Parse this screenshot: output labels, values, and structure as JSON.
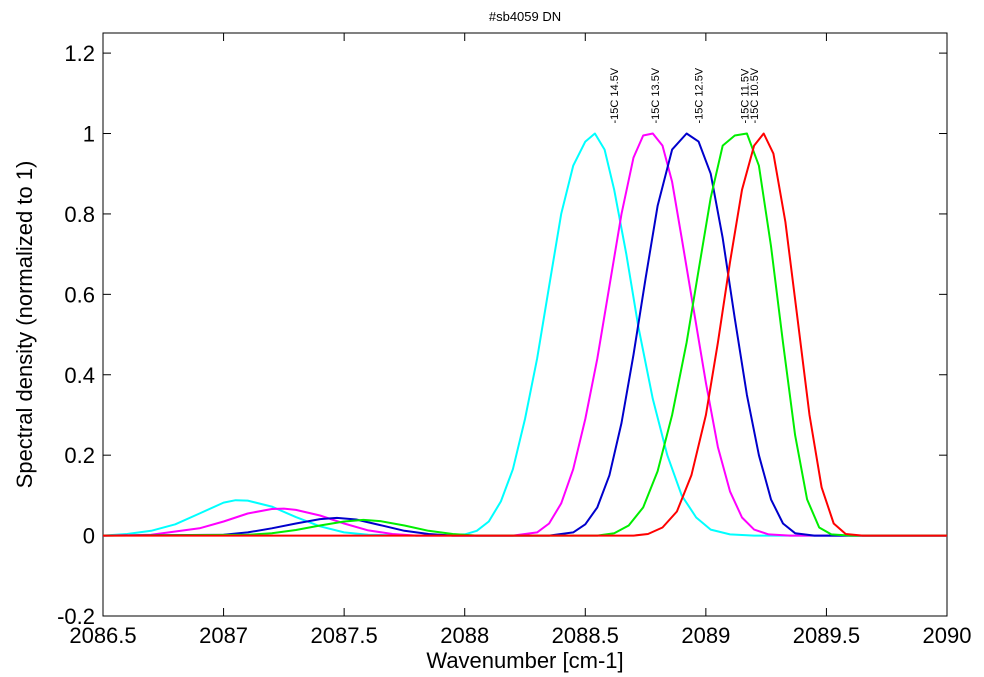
{
  "chart_data": {
    "type": "line",
    "title": "#sb4059 DN",
    "xlabel": "Wavenumber [cm-1]",
    "ylabel": "Spectral density (normalized to 1)",
    "xlim": [
      2086.5,
      2090
    ],
    "ylim": [
      -0.2,
      1.25
    ],
    "xticks": [
      2086.5,
      2087,
      2087.5,
      2088,
      2088.5,
      2089,
      2089.5,
      2090
    ],
    "xtick_labels": [
      "2086.5",
      "2087",
      "2087.5",
      "2088",
      "2088.5",
      "2089",
      "2089.5",
      "2090"
    ],
    "yticks": [
      -0.2,
      0,
      0.2,
      0.4,
      0.6,
      0.8,
      1,
      1.2
    ],
    "ytick_labels": [
      "-0.2",
      "0",
      "0.2",
      "0.4",
      "0.6",
      "0.8",
      "1",
      "1.2"
    ],
    "grid": false,
    "series": [
      {
        "color": "#00ffff",
        "points": [
          [
            2086.5,
            0.0
          ],
          [
            2086.6,
            0.004
          ],
          [
            2086.7,
            0.012
          ],
          [
            2086.8,
            0.028
          ],
          [
            2086.9,
            0.055
          ],
          [
            2087.0,
            0.082
          ],
          [
            2087.05,
            0.088
          ],
          [
            2087.1,
            0.087
          ],
          [
            2087.2,
            0.072
          ],
          [
            2087.3,
            0.046
          ],
          [
            2087.4,
            0.023
          ],
          [
            2087.5,
            0.008
          ],
          [
            2087.6,
            0.002
          ],
          [
            2087.8,
            0.0
          ],
          [
            2088.0,
            0.003
          ],
          [
            2088.05,
            0.012
          ],
          [
            2088.1,
            0.035
          ],
          [
            2088.15,
            0.085
          ],
          [
            2088.2,
            0.165
          ],
          [
            2088.25,
            0.29
          ],
          [
            2088.3,
            0.44
          ],
          [
            2088.35,
            0.62
          ],
          [
            2088.4,
            0.8
          ],
          [
            2088.45,
            0.92
          ],
          [
            2088.5,
            0.98
          ],
          [
            2088.54,
            1.0
          ],
          [
            2088.58,
            0.96
          ],
          [
            2088.62,
            0.86
          ],
          [
            2088.67,
            0.7
          ],
          [
            2088.72,
            0.52
          ],
          [
            2088.78,
            0.34
          ],
          [
            2088.84,
            0.2
          ],
          [
            2088.9,
            0.1
          ],
          [
            2088.96,
            0.045
          ],
          [
            2089.02,
            0.015
          ],
          [
            2089.1,
            0.003
          ],
          [
            2089.2,
            0.0
          ],
          [
            2090,
            0.0
          ]
        ]
      },
      {
        "color": "#ff00ff",
        "points": [
          [
            2086.5,
            0.0
          ],
          [
            2086.7,
            0.002
          ],
          [
            2086.9,
            0.018
          ],
          [
            2087.0,
            0.035
          ],
          [
            2087.1,
            0.055
          ],
          [
            2087.2,
            0.066
          ],
          [
            2087.25,
            0.067
          ],
          [
            2087.3,
            0.064
          ],
          [
            2087.4,
            0.05
          ],
          [
            2087.5,
            0.03
          ],
          [
            2087.6,
            0.013
          ],
          [
            2087.7,
            0.004
          ],
          [
            2087.8,
            0.0
          ],
          [
            2088.2,
            0.0
          ],
          [
            2088.3,
            0.008
          ],
          [
            2088.35,
            0.03
          ],
          [
            2088.4,
            0.08
          ],
          [
            2088.45,
            0.165
          ],
          [
            2088.5,
            0.29
          ],
          [
            2088.55,
            0.44
          ],
          [
            2088.6,
            0.62
          ],
          [
            2088.65,
            0.8
          ],
          [
            2088.7,
            0.94
          ],
          [
            2088.74,
            0.995
          ],
          [
            2088.78,
            1.0
          ],
          [
            2088.82,
            0.97
          ],
          [
            2088.86,
            0.88
          ],
          [
            2088.9,
            0.74
          ],
          [
            2088.95,
            0.56
          ],
          [
            2089.0,
            0.38
          ],
          [
            2089.05,
            0.22
          ],
          [
            2089.1,
            0.11
          ],
          [
            2089.15,
            0.045
          ],
          [
            2089.2,
            0.015
          ],
          [
            2089.26,
            0.003
          ],
          [
            2089.35,
            0.0
          ],
          [
            2090,
            0.0
          ]
        ]
      },
      {
        "color": "#0000cc",
        "points": [
          [
            2086.5,
            0.0
          ],
          [
            2087.0,
            0.002
          ],
          [
            2087.1,
            0.008
          ],
          [
            2087.2,
            0.018
          ],
          [
            2087.3,
            0.03
          ],
          [
            2087.4,
            0.041
          ],
          [
            2087.47,
            0.044
          ],
          [
            2087.55,
            0.04
          ],
          [
            2087.65,
            0.026
          ],
          [
            2087.75,
            0.012
          ],
          [
            2087.85,
            0.004
          ],
          [
            2087.95,
            0.0
          ],
          [
            2088.35,
            0.0
          ],
          [
            2088.45,
            0.008
          ],
          [
            2088.5,
            0.028
          ],
          [
            2088.55,
            0.07
          ],
          [
            2088.6,
            0.15
          ],
          [
            2088.65,
            0.28
          ],
          [
            2088.7,
            0.45
          ],
          [
            2088.75,
            0.64
          ],
          [
            2088.8,
            0.82
          ],
          [
            2088.86,
            0.96
          ],
          [
            2088.92,
            1.0
          ],
          [
            2088.97,
            0.98
          ],
          [
            2089.02,
            0.9
          ],
          [
            2089.07,
            0.74
          ],
          [
            2089.12,
            0.54
          ],
          [
            2089.17,
            0.35
          ],
          [
            2089.22,
            0.2
          ],
          [
            2089.27,
            0.09
          ],
          [
            2089.32,
            0.03
          ],
          [
            2089.37,
            0.006
          ],
          [
            2089.45,
            0.0
          ],
          [
            2090,
            0.0
          ]
        ]
      },
      {
        "color": "#00ee00",
        "points": [
          [
            2086.5,
            0.0
          ],
          [
            2087.1,
            0.002
          ],
          [
            2087.2,
            0.006
          ],
          [
            2087.3,
            0.014
          ],
          [
            2087.4,
            0.025
          ],
          [
            2087.5,
            0.035
          ],
          [
            2087.58,
            0.039
          ],
          [
            2087.65,
            0.036
          ],
          [
            2087.75,
            0.025
          ],
          [
            2087.85,
            0.012
          ],
          [
            2087.95,
            0.004
          ],
          [
            2088.05,
            0.0
          ],
          [
            2088.55,
            0.0
          ],
          [
            2088.62,
            0.006
          ],
          [
            2088.68,
            0.025
          ],
          [
            2088.74,
            0.07
          ],
          [
            2088.8,
            0.16
          ],
          [
            2088.86,
            0.3
          ],
          [
            2088.92,
            0.48
          ],
          [
            2088.97,
            0.66
          ],
          [
            2089.02,
            0.84
          ],
          [
            2089.07,
            0.97
          ],
          [
            2089.12,
            0.995
          ],
          [
            2089.17,
            1.0
          ],
          [
            2089.22,
            0.92
          ],
          [
            2089.27,
            0.72
          ],
          [
            2089.32,
            0.48
          ],
          [
            2089.37,
            0.25
          ],
          [
            2089.42,
            0.09
          ],
          [
            2089.47,
            0.02
          ],
          [
            2089.52,
            0.003
          ],
          [
            2089.6,
            0.0
          ],
          [
            2090,
            0.0
          ]
        ]
      },
      {
        "color": "#ff0000",
        "points": [
          [
            2086.5,
            0.0
          ],
          [
            2087.5,
            0.0
          ],
          [
            2088.0,
            0.0
          ],
          [
            2088.7,
            0.0
          ],
          [
            2088.76,
            0.004
          ],
          [
            2088.82,
            0.02
          ],
          [
            2088.88,
            0.06
          ],
          [
            2088.94,
            0.15
          ],
          [
            2089.0,
            0.3
          ],
          [
            2089.05,
            0.48
          ],
          [
            2089.1,
            0.68
          ],
          [
            2089.15,
            0.86
          ],
          [
            2089.2,
            0.97
          ],
          [
            2089.24,
            1.0
          ],
          [
            2089.28,
            0.95
          ],
          [
            2089.33,
            0.78
          ],
          [
            2089.38,
            0.54
          ],
          [
            2089.43,
            0.3
          ],
          [
            2089.48,
            0.12
          ],
          [
            2089.53,
            0.03
          ],
          [
            2089.58,
            0.004
          ],
          [
            2089.65,
            0.0
          ],
          [
            2090,
            0.0
          ]
        ]
      }
    ],
    "annotations": [
      {
        "text": "-15C 14.5V",
        "x": 2088.62,
        "y": 1.025
      },
      {
        "text": "-15C 13.5V",
        "x": 2088.79,
        "y": 1.025
      },
      {
        "text": "-15C 12.5V",
        "x": 2088.97,
        "y": 1.025
      },
      {
        "text": "-15C 11.5V",
        "x": 2089.16,
        "y": 1.025
      },
      {
        "text": "-15C 10.5V",
        "x": 2089.2,
        "y": 1.025
      }
    ]
  }
}
